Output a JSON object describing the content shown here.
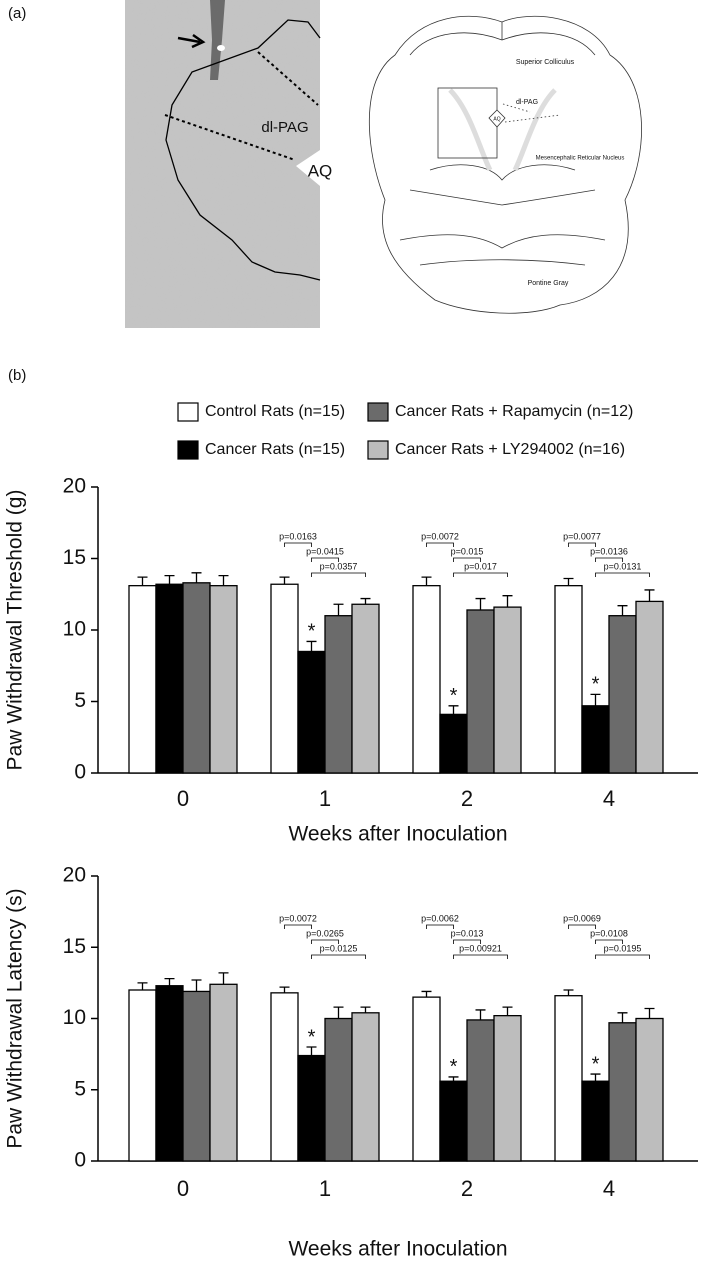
{
  "panel_a": {
    "label": "(a)",
    "micrograph_labels": [
      "dl-PAG",
      "AQ"
    ],
    "atlas_labels": [
      "Superior Colliculus",
      "dl-PAG",
      "AQ",
      "Mesencephalic Reticular Nucleus",
      "Pontine Gray"
    ]
  },
  "panel_b_label": "(b)",
  "chart_data": [
    {
      "type": "bar",
      "y_label": "Paw Withdrawal Threshold (g)",
      "x_label": "Weeks after Inoculation",
      "categories": [
        "0",
        "1",
        "2",
        "4"
      ],
      "ylim": [
        0,
        20
      ],
      "yticks": [
        0,
        5,
        10,
        15,
        20
      ],
      "series": [
        {
          "name": "Control Rats (n=15)",
          "color": "#ffffff",
          "values": [
            13.1,
            13.2,
            13.1,
            13.1
          ],
          "errors": [
            0.6,
            0.5,
            0.6,
            0.5
          ]
        },
        {
          "name": "Cancer Rats (n=15)",
          "color": "#000000",
          "values": [
            13.2,
            8.5,
            4.1,
            4.7
          ],
          "errors": [
            0.6,
            0.7,
            0.6,
            0.8
          ]
        },
        {
          "name": "Cancer Rats + Rapamycin (n=12)",
          "color": "#6b6b6b",
          "values": [
            13.3,
            11.0,
            11.4,
            11.0
          ],
          "errors": [
            0.7,
            0.8,
            0.8,
            0.7
          ]
        },
        {
          "name": "Cancer Rats + LY294002 (n=16)",
          "color": "#bdbdbd",
          "values": [
            13.1,
            11.8,
            11.6,
            12.0
          ],
          "errors": [
            0.7,
            0.4,
            0.8,
            0.8
          ]
        }
      ],
      "p_values": [
        null,
        [
          "p=0.0163",
          "p=0.0415",
          "p=0.0357"
        ],
        [
          "p=0.0072",
          "p=0.015",
          "p=0.017"
        ],
        [
          "p=0.0077",
          "p=0.0136",
          "p=0.0131"
        ]
      ],
      "significance": [
        null,
        "*",
        "*",
        "*"
      ]
    },
    {
      "type": "bar",
      "y_label": "Paw Withdrawal Latency (s)",
      "x_label": "Weeks after Inoculation",
      "categories": [
        "0",
        "1",
        "2",
        "4"
      ],
      "ylim": [
        0,
        20
      ],
      "yticks": [
        0,
        5,
        10,
        15,
        20
      ],
      "series": [
        {
          "color": "#ffffff",
          "values": [
            12.0,
            11.8,
            11.5,
            11.6
          ],
          "errors": [
            0.5,
            0.4,
            0.4,
            0.4
          ]
        },
        {
          "color": "#000000",
          "values": [
            12.3,
            7.4,
            5.6,
            5.6
          ],
          "errors": [
            0.5,
            0.6,
            0.3,
            0.5
          ]
        },
        {
          "color": "#6b6b6b",
          "values": [
            11.9,
            10.0,
            9.9,
            9.7
          ],
          "errors": [
            0.8,
            0.8,
            0.7,
            0.7
          ]
        },
        {
          "color": "#bdbdbd",
          "values": [
            12.4,
            10.4,
            10.2,
            10.0
          ],
          "errors": [
            0.8,
            0.4,
            0.6,
            0.7
          ]
        }
      ],
      "p_values": [
        null,
        [
          "p=0.0072",
          "p=0.0265",
          "p=0.0125"
        ],
        [
          "p=0.0062",
          "p=0.013",
          "p=0.00921"
        ],
        [
          "p=0.0069",
          "p=0.0108",
          "p=0.0195"
        ]
      ],
      "significance": [
        null,
        "*",
        "*",
        "*"
      ]
    }
  ]
}
